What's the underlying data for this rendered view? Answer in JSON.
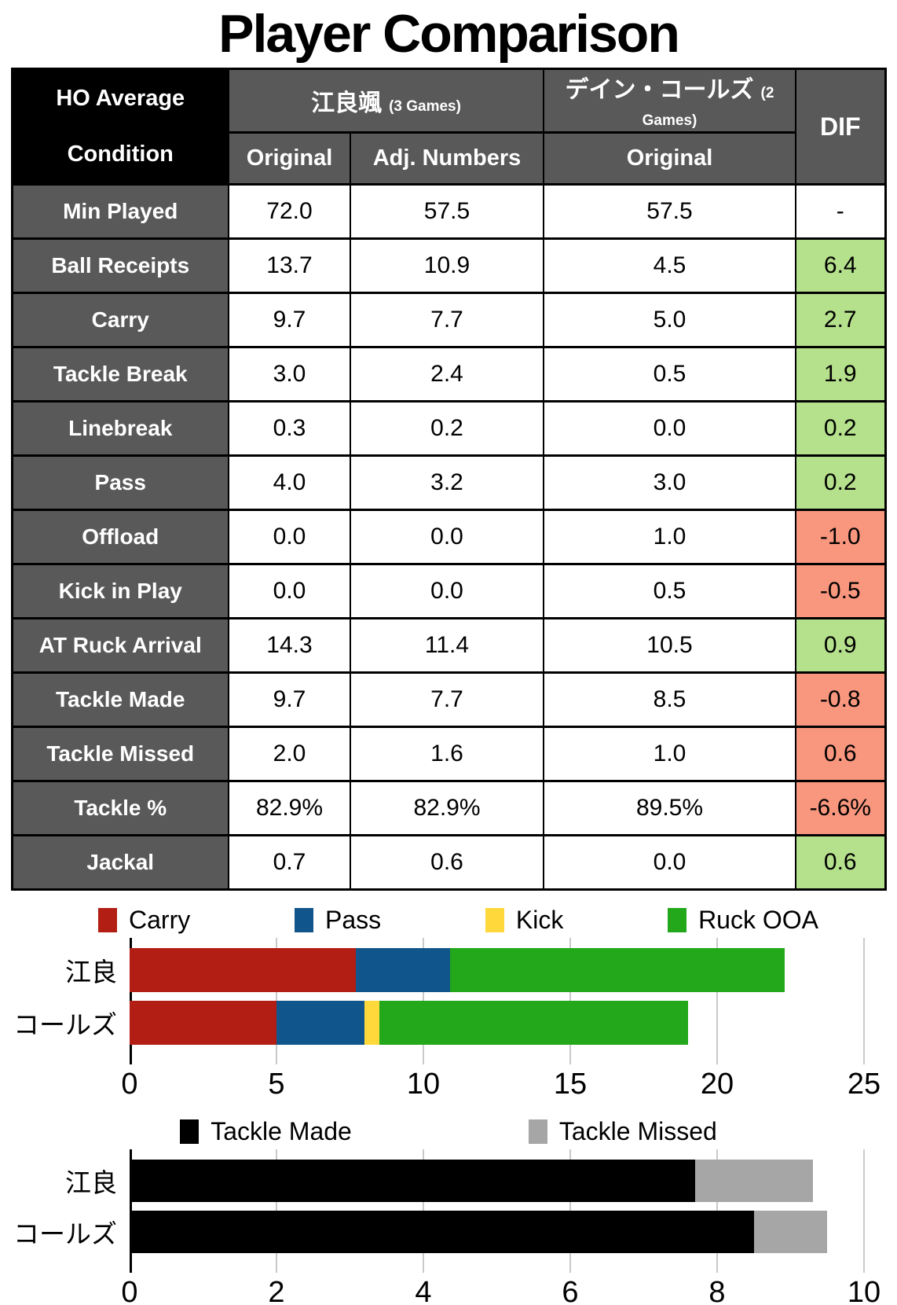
{
  "title": "Player Comparison",
  "table": {
    "corner": {
      "line1": "HO Average",
      "line2": "Condition"
    },
    "player1": {
      "name": "江良颯",
      "games": "(3 Games)",
      "columns": [
        "Original",
        "Adj. Numbers"
      ]
    },
    "player2": {
      "name": "デイン・コールズ",
      "games": "(2 Games)",
      "columns": [
        "Original"
      ]
    },
    "dif_header": "DIF",
    "colors": {
      "header_bg": "#595959",
      "corner_bg": "#000000",
      "positive_bg": "#B5E08C",
      "negative_bg": "#F8967E"
    },
    "rows": [
      {
        "label": "Min Played",
        "p1_original": "72.0",
        "p1_adjusted": "57.5",
        "p2_original": "57.5",
        "dif": "-",
        "dif_color": "none"
      },
      {
        "label": "Ball Receipts",
        "p1_original": "13.7",
        "p1_adjusted": "10.9",
        "p2_original": "4.5",
        "dif": "6.4",
        "dif_color": "green"
      },
      {
        "label": "Carry",
        "p1_original": "9.7",
        "p1_adjusted": "7.7",
        "p2_original": "5.0",
        "dif": "2.7",
        "dif_color": "green"
      },
      {
        "label": "Tackle Break",
        "p1_original": "3.0",
        "p1_adjusted": "2.4",
        "p2_original": "0.5",
        "dif": "1.9",
        "dif_color": "green"
      },
      {
        "label": "Linebreak",
        "p1_original": "0.3",
        "p1_adjusted": "0.2",
        "p2_original": "0.0",
        "dif": "0.2",
        "dif_color": "green"
      },
      {
        "label": "Pass",
        "p1_original": "4.0",
        "p1_adjusted": "3.2",
        "p2_original": "3.0",
        "dif": "0.2",
        "dif_color": "green"
      },
      {
        "label": "Offload",
        "p1_original": "0.0",
        "p1_adjusted": "0.0",
        "p2_original": "1.0",
        "dif": "-1.0",
        "dif_color": "red"
      },
      {
        "label": "Kick in Play",
        "p1_original": "0.0",
        "p1_adjusted": "0.0",
        "p2_original": "0.5",
        "dif": "-0.5",
        "dif_color": "red"
      },
      {
        "label": "AT Ruck Arrival",
        "p1_original": "14.3",
        "p1_adjusted": "11.4",
        "p2_original": "10.5",
        "dif": "0.9",
        "dif_color": "green"
      },
      {
        "label": "Tackle Made",
        "p1_original": "9.7",
        "p1_adjusted": "7.7",
        "p2_original": "8.5",
        "dif": "-0.8",
        "dif_color": "red"
      },
      {
        "label": "Tackle Missed",
        "p1_original": "2.0",
        "p1_adjusted": "1.6",
        "p2_original": "1.0",
        "dif": "0.6",
        "dif_color": "red"
      },
      {
        "label": "Tackle %",
        "p1_original": "82.9%",
        "p1_adjusted": "82.9%",
        "p2_original": "89.5%",
        "dif": "-6.6%",
        "dif_color": "red"
      },
      {
        "label": "Jackal",
        "p1_original": "0.7",
        "p1_adjusted": "0.6",
        "p2_original": "0.0",
        "dif": "0.6",
        "dif_color": "green"
      }
    ]
  },
  "chart_data": [
    {
      "type": "bar",
      "stacked": true,
      "orientation": "horizontal",
      "categories": [
        "江良",
        "コールズ"
      ],
      "series": [
        {
          "name": "Carry",
          "color": "#B21E14",
          "values": [
            7.7,
            5.0
          ]
        },
        {
          "name": "Pass",
          "color": "#10568C",
          "values": [
            3.2,
            3.0
          ]
        },
        {
          "name": "Kick",
          "color": "#FFD83B",
          "values": [
            0.0,
            0.5
          ]
        },
        {
          "name": "Ruck OOA",
          "color": "#22A81A",
          "values": [
            11.4,
            10.5
          ]
        }
      ],
      "xlim": [
        0,
        25
      ],
      "xticks": [
        0,
        5,
        10,
        15,
        20,
        25
      ],
      "grid": true,
      "legend_position": "top",
      "title": "",
      "xlabel": "",
      "ylabel": ""
    },
    {
      "type": "bar",
      "stacked": true,
      "orientation": "horizontal",
      "categories": [
        "江良",
        "コールズ"
      ],
      "series": [
        {
          "name": "Tackle Made",
          "color": "#000000",
          "values": [
            7.7,
            8.5
          ]
        },
        {
          "name": "Tackle Missed",
          "color": "#A6A6A6",
          "values": [
            1.6,
            1.0
          ]
        }
      ],
      "xlim": [
        0,
        10
      ],
      "xticks": [
        0,
        2,
        4,
        6,
        8,
        10
      ],
      "grid": true,
      "legend_position": "top",
      "title": "",
      "xlabel": "",
      "ylabel": ""
    }
  ]
}
